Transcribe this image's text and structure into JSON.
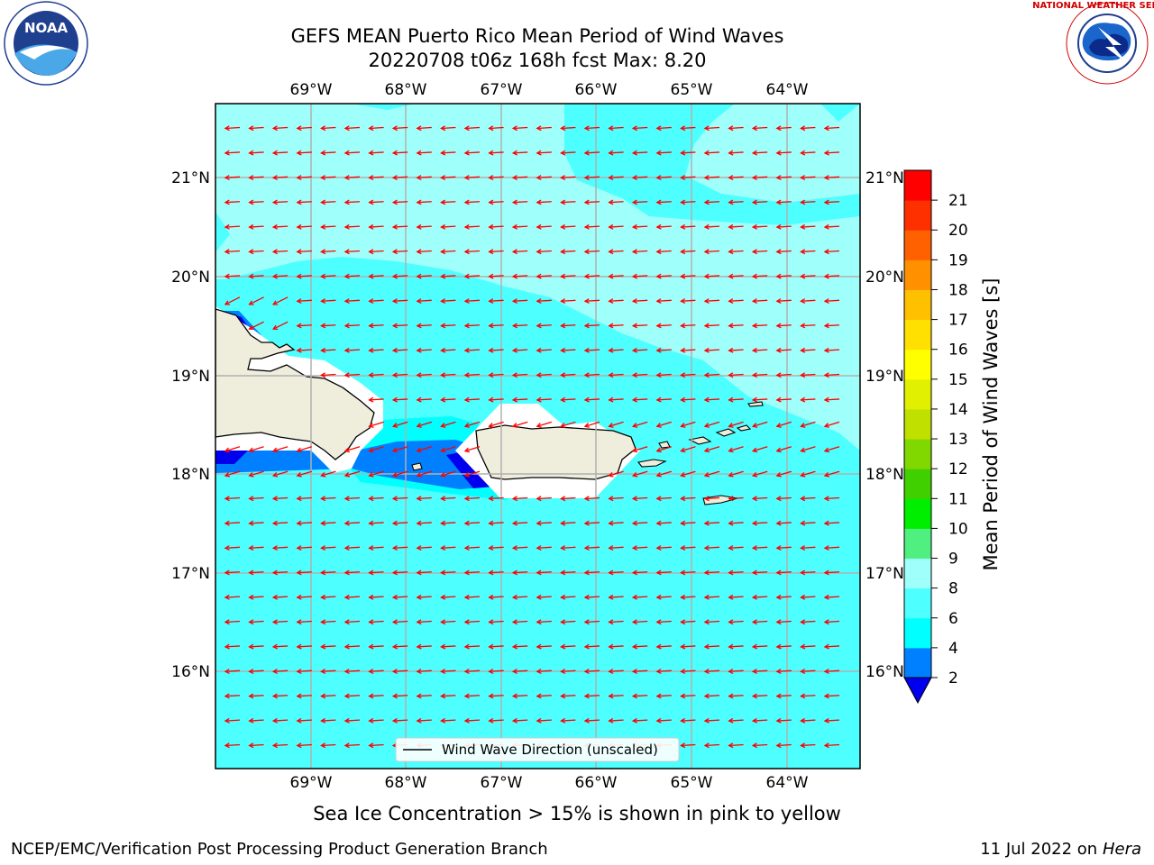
{
  "header": {
    "title_line1": "GEFS MEAN Puerto Rico Mean Period of Wind Waves",
    "title_line2": "20220708 t06z 168h fcst   Max: 8.20",
    "noara_logo_text": "NOAA",
    "nws_logo_text": "NATIONAL WEATHER SERVICE"
  },
  "map": {
    "lon_labels": [
      "69°W",
      "68°W",
      "67°W",
      "66°W",
      "65°W",
      "64°W"
    ],
    "lat_labels": [
      "21°N",
      "20°N",
      "19°N",
      "18°N",
      "17°N",
      "16°N"
    ],
    "legend_label": "Wind Wave Direction (unscaled)",
    "colors": {
      "land": "#efeddc",
      "ocean_6_8": "#4dffff",
      "ocean_8_9": "#9ffffb",
      "ocean_4_6": "#00ffff",
      "ocean_2_4": "#0080ff",
      "ocean_below_2": "#0000ee",
      "arrow": "#ff0000",
      "grid": "#b0b0b0"
    }
  },
  "colorbar": {
    "label": "Mean Period of Wind Waves [s]",
    "ticks": [
      "2",
      "4",
      "6",
      "8",
      "9",
      "10",
      "11",
      "12",
      "13",
      "14",
      "15",
      "16",
      "17",
      "18",
      "19",
      "20",
      "21"
    ],
    "colors": [
      "#0080ff",
      "#00ffff",
      "#4dffff",
      "#9ffffb",
      "#50f080",
      "#00ee00",
      "#40d000",
      "#80d800",
      "#c0e000",
      "#e0f000",
      "#ffff00",
      "#ffe000",
      "#ffc000",
      "#ff9000",
      "#ff6000",
      "#ff3000",
      "#ff0000"
    ],
    "under_color": "#0000ee"
  },
  "caption": "Sea Ice Concentration > 15% is shown in pink to yellow",
  "footer": {
    "left": "NCEP/EMC/Verification Post Processing Product Generation Branch",
    "right_prefix": "11 Jul 2022 on ",
    "right_machine": "Hera"
  }
}
